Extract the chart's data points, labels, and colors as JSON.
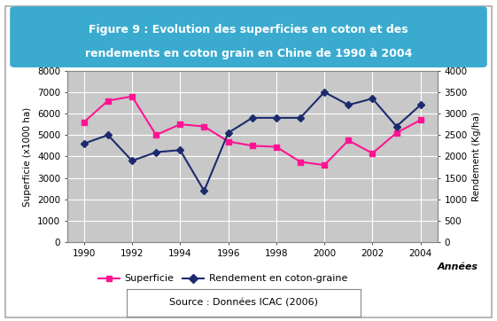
{
  "title_line1": "Figure 9 : Evolution des superficies en coton et des",
  "title_line2": "rendements en coton grain en Chine de 1990 à 2004",
  "years": [
    1990,
    1991,
    1992,
    1993,
    1994,
    1995,
    1996,
    1997,
    1998,
    1999,
    2000,
    2001,
    2002,
    2003,
    2004
  ],
  "superficie": [
    5600,
    6600,
    6800,
    5000,
    5500,
    5400,
    4700,
    4500,
    4450,
    3750,
    3600,
    4750,
    4150,
    5100,
    5700
  ],
  "rendement": [
    2300,
    2500,
    1900,
    2100,
    2150,
    1200,
    2550,
    2900,
    2900,
    2900,
    3500,
    3200,
    3350,
    2700,
    3200
  ],
  "superficie_color": "#FF1493",
  "rendement_color": "#1C2B6E",
  "xlabel": "Années",
  "ylabel_left": "Superficie (x1000 ha)",
  "ylabel_right": "Rendement (Kg/ha)",
  "ylim_left": [
    0,
    8000
  ],
  "ylim_right": [
    0,
    4000
  ],
  "yticks_left": [
    0,
    1000,
    2000,
    3000,
    4000,
    5000,
    6000,
    7000,
    8000
  ],
  "yticks_right": [
    0,
    500,
    1000,
    1500,
    2000,
    2500,
    3000,
    3500,
    4000
  ],
  "xticks": [
    1990,
    1992,
    1994,
    1996,
    1998,
    2000,
    2002,
    2004
  ],
  "legend_superficie": "Superficie",
  "legend_rendement": "Rendement en coton-graine",
  "source_text": "Source : Données ICAC (2006)",
  "plot_bg": "#C8C8C8",
  "fig_bg": "#FFFFFF",
  "title_bg_top": "#7ECEF0",
  "title_bg_bot": "#1A7BAA",
  "title_color": "#FFFFFF",
  "border_color": "#888888",
  "title_fontsize": 9.0,
  "axis_fontsize": 7.5,
  "legend_fontsize": 8.0,
  "source_fontsize": 8.0
}
